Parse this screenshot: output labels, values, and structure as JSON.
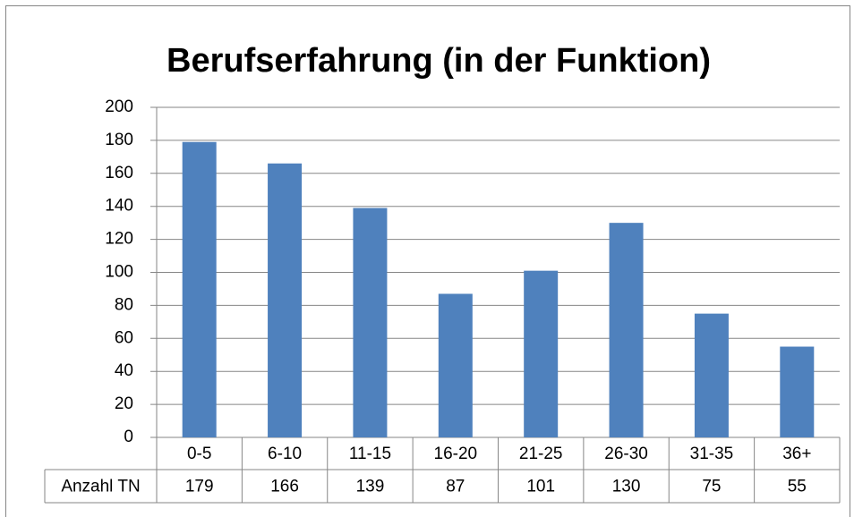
{
  "chart_data": {
    "type": "bar",
    "title": "Berufserfahrung (in der Funktion)",
    "categories": [
      "0-5",
      "6-10",
      "11-15",
      "16-20",
      "21-25",
      "26-30",
      "31-35",
      "36+"
    ],
    "series": [
      {
        "name": "Anzahl TN",
        "color": "#4f81bd",
        "values": [
          179,
          166,
          139,
          87,
          101,
          130,
          75,
          55
        ]
      }
    ],
    "ylim": [
      0,
      200
    ],
    "yticks": [
      0,
      20,
      40,
      60,
      80,
      100,
      120,
      140,
      160,
      180,
      200
    ],
    "grid": true
  }
}
